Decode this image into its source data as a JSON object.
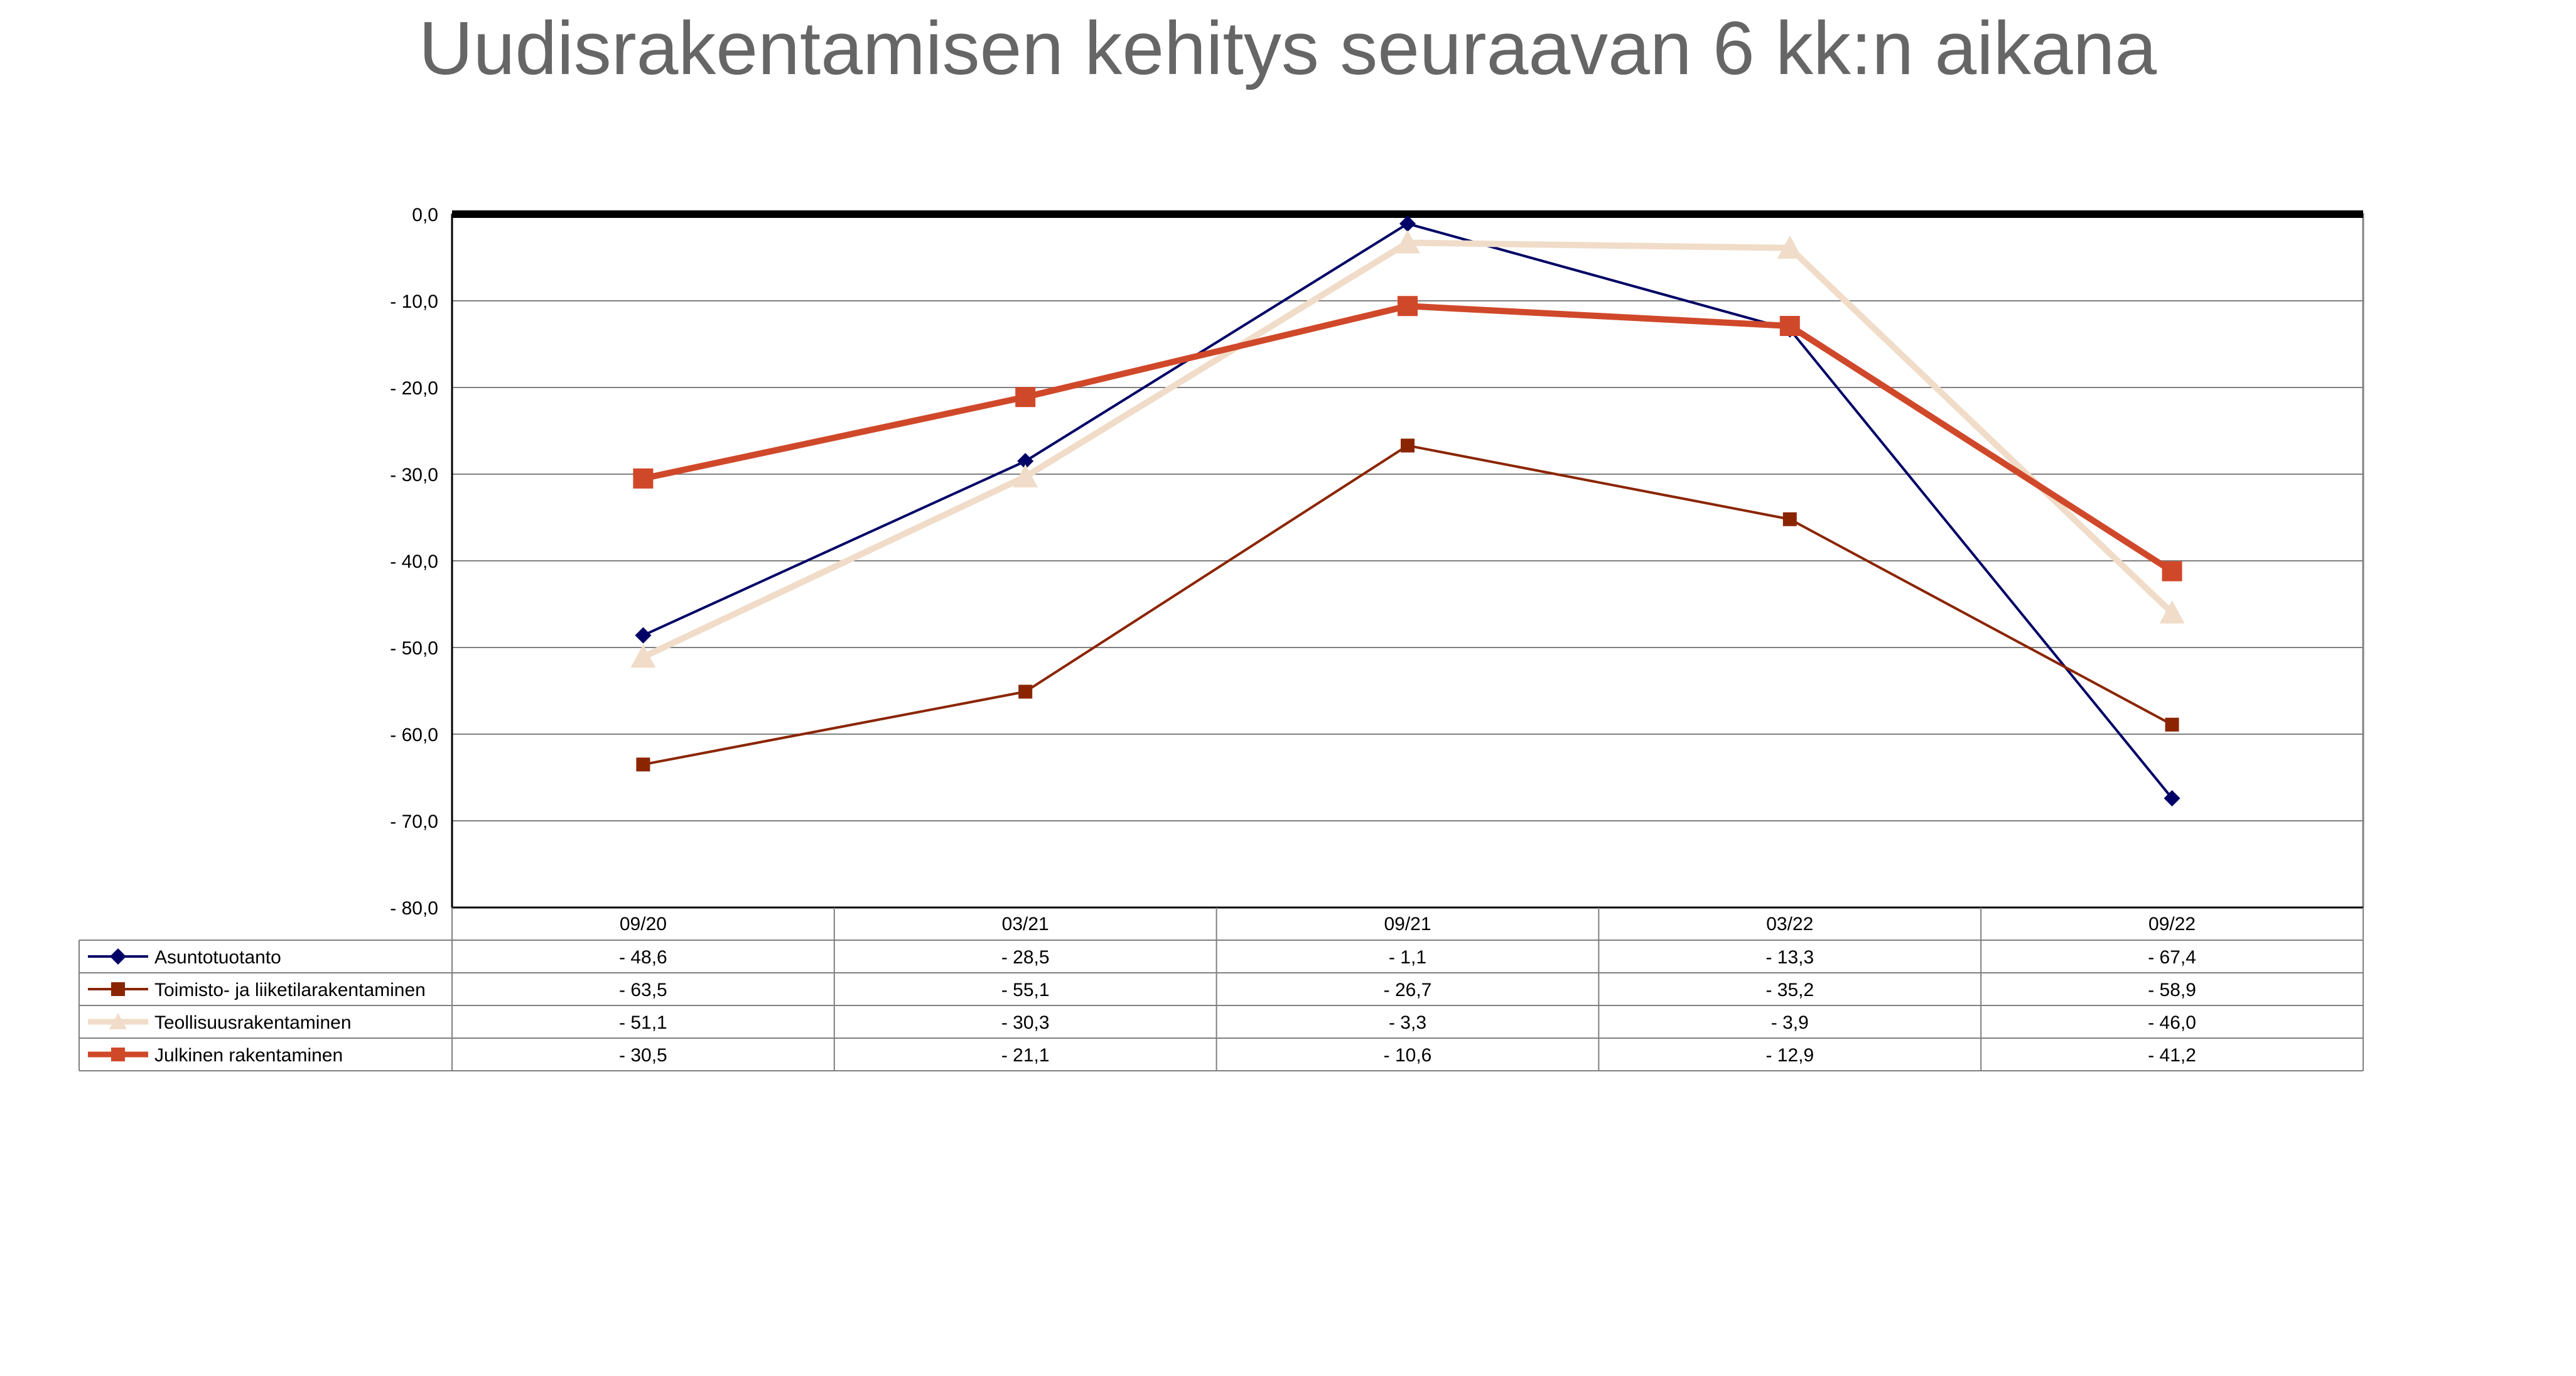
{
  "chart_data": {
    "type": "line",
    "title": "Uudisrakentamisen kehitys seuraavan 6 kk:n aikana",
    "categories": [
      "09/20",
      "03/21",
      "09/21",
      "03/22",
      "09/22"
    ],
    "ylim": [
      -80,
      0
    ],
    "yticks": [
      0,
      -10,
      -20,
      -30,
      -40,
      -50,
      -60,
      -70,
      -80
    ],
    "ytick_labels": [
      "0,0",
      "- 10,0",
      "- 20,0",
      "- 30,0",
      "- 40,0",
      "- 50,0",
      "- 60,0",
      "- 70,0",
      "- 80,0"
    ],
    "grid": true,
    "legend": "data-table-below",
    "series": [
      {
        "name": "Asuntotuotanto",
        "values": [
          -48.6,
          -28.5,
          -1.1,
          -13.3,
          -67.4
        ],
        "labels": [
          "- 48,6",
          "- 28,5",
          "- 1,1",
          "- 13,3",
          "- 67,4"
        ],
        "color": "#000066",
        "marker": "diamond",
        "weight": "thin"
      },
      {
        "name": "Toimisto- ja liiketilarakentaminen",
        "values": [
          -63.5,
          -55.1,
          -26.7,
          -35.2,
          -58.9
        ],
        "labels": [
          "- 63,5",
          "- 55,1",
          "- 26,7",
          "- 35,2",
          "- 58,9"
        ],
        "color": "#8b2500",
        "marker": "square",
        "weight": "thin"
      },
      {
        "name": "Teollisuusrakentaminen",
        "values": [
          -51.1,
          -30.3,
          -3.3,
          -3.9,
          -46.0
        ],
        "labels": [
          "- 51,1",
          "- 30,3",
          "- 3,3",
          "- 3,9",
          "- 46,0"
        ],
        "color": "#f0dcc8",
        "marker": "triangle",
        "weight": "thick"
      },
      {
        "name": "Julkinen rakentaminen",
        "values": [
          -30.5,
          -21.1,
          -10.6,
          -12.9,
          -41.2
        ],
        "labels": [
          "- 30,5",
          "- 21,1",
          "- 10,6",
          "- 12,9",
          "- 41,2"
        ],
        "color": "#d0482a",
        "marker": "square",
        "weight": "thick"
      }
    ]
  }
}
